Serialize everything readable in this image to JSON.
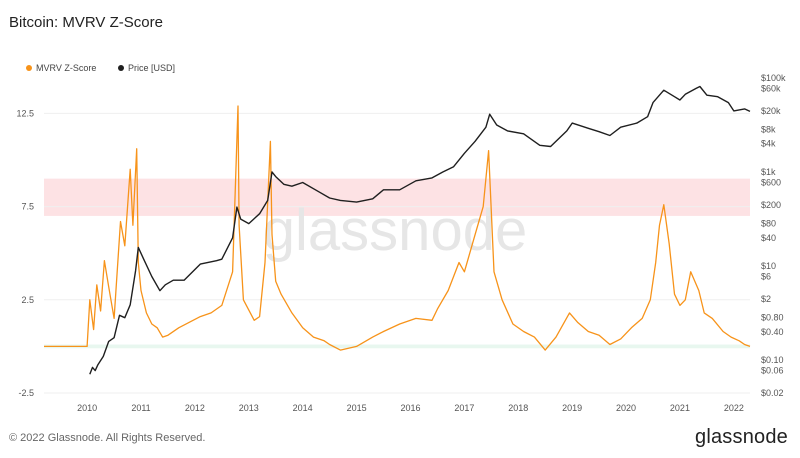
{
  "title": "Bitcoin: MVRV Z-Score",
  "footer": "© 2022 Glassnode. All Rights Reserved.",
  "brand": "glassnode",
  "watermark": "glassnode",
  "colors": {
    "zscore": "#f7931a",
    "price": "#1f1f1f",
    "red_band": "#fde2e4",
    "green_band": "#e8f7ef"
  },
  "chart_data": {
    "type": "line",
    "title": "Bitcoin: MVRV Z-Score",
    "legend": {
      "placement": "top-left",
      "entries": [
        "MVRV Z-Score",
        "Price [USD]"
      ]
    },
    "x_ticks": [
      "2010",
      "2011",
      "2012",
      "2013",
      "2014",
      "2015",
      "2016",
      "2017",
      "2018",
      "2019",
      "2020",
      "2021",
      "2022"
    ],
    "x_range": [
      2009.7,
      2022.8
    ],
    "y_left": {
      "ticks": [
        "12.5",
        "7.5",
        "2.5",
        "-2.5"
      ],
      "tick_values": [
        12.5,
        7.5,
        2.5,
        -2.5
      ],
      "range": [
        -2.5,
        14.4
      ]
    },
    "y_right": {
      "scale": "log",
      "ticks": [
        "$100k",
        "$60k",
        "$20k",
        "$8k",
        "$4k",
        "$1k",
        "$600",
        "$200",
        "$80",
        "$40",
        "$10",
        "$6",
        "$2",
        "$0.80",
        "$0.40",
        "$0.10",
        "$0.06",
        "$0.02"
      ],
      "tick_values": [
        100000,
        60000,
        20000,
        8000,
        4000,
        1000,
        600,
        200,
        80,
        40,
        10,
        6,
        2,
        0.8,
        0.4,
        0.1,
        0.06,
        0.02
      ],
      "range": [
        0.02,
        100000
      ]
    },
    "bands": [
      {
        "axis": "left",
        "from": 7.0,
        "to": 9.0,
        "color": "#fde2e4"
      },
      {
        "axis": "left",
        "from": -0.1,
        "to": 0.1,
        "color": "#e8f7ef"
      }
    ],
    "series": [
      {
        "name": "MVRV Z-Score",
        "axis": "left",
        "color": "#f7931a",
        "x": [
          2009.7,
          2010.5,
          2010.55,
          2010.62,
          2010.68,
          2010.75,
          2010.82,
          2010.9,
          2011.0,
          2011.12,
          2011.2,
          2011.3,
          2011.35,
          2011.42,
          2011.45,
          2011.5,
          2011.6,
          2011.7,
          2011.8,
          2011.9,
          2012.0,
          2012.2,
          2012.4,
          2012.6,
          2012.8,
          2013.0,
          2013.2,
          2013.3,
          2013.32,
          2013.4,
          2013.6,
          2013.7,
          2013.8,
          2013.9,
          2013.93,
          2014.0,
          2014.1,
          2014.3,
          2014.5,
          2014.7,
          2014.9,
          2015.0,
          2015.2,
          2015.5,
          2015.8,
          2016.0,
          2016.3,
          2016.6,
          2016.9,
          2017.0,
          2017.2,
          2017.4,
          2017.5,
          2017.7,
          2017.85,
          2017.95,
          2018.05,
          2018.2,
          2018.4,
          2018.6,
          2018.8,
          2019.0,
          2019.2,
          2019.45,
          2019.6,
          2019.8,
          2020.0,
          2020.2,
          2020.4,
          2020.6,
          2020.8,
          2020.95,
          2021.05,
          2021.12,
          2021.2,
          2021.3,
          2021.4,
          2021.5,
          2021.6,
          2021.7,
          2021.85,
          2021.95,
          2022.1,
          2022.3,
          2022.45,
          2022.6,
          2022.7,
          2022.8
        ],
        "values": [
          0.0,
          0.0,
          2.5,
          0.9,
          3.3,
          1.9,
          4.6,
          3.2,
          1.5,
          6.7,
          5.4,
          9.5,
          6.5,
          10.6,
          4.5,
          3.0,
          1.8,
          1.2,
          1.0,
          0.5,
          0.6,
          1.0,
          1.3,
          1.6,
          1.8,
          2.2,
          4.0,
          12.9,
          6.5,
          2.5,
          1.4,
          1.6,
          4.5,
          11.0,
          6.0,
          3.5,
          2.8,
          1.8,
          1.0,
          0.5,
          0.3,
          0.1,
          -0.2,
          0.0,
          0.5,
          0.8,
          1.2,
          1.5,
          1.4,
          2.0,
          3.0,
          4.5,
          4.0,
          6.0,
          7.5,
          10.5,
          4.0,
          2.5,
          1.2,
          0.8,
          0.5,
          -0.2,
          0.5,
          1.8,
          1.3,
          0.8,
          0.6,
          0.1,
          0.4,
          1.0,
          1.5,
          2.5,
          4.5,
          6.5,
          7.6,
          5.5,
          2.8,
          2.2,
          2.5,
          4.0,
          3.0,
          1.8,
          1.5,
          0.8,
          0.5,
          0.3,
          0.1,
          0.0
        ]
      },
      {
        "name": "Price [USD]",
        "axis": "right",
        "color": "#1f1f1f",
        "x": [
          2010.55,
          2010.6,
          2010.65,
          2010.7,
          2010.8,
          2010.9,
          2011.0,
          2011.1,
          2011.2,
          2011.3,
          2011.4,
          2011.45,
          2011.55,
          2011.7,
          2011.85,
          2011.95,
          2012.1,
          2012.3,
          2012.6,
          2012.9,
          2013.0,
          2013.2,
          2013.28,
          2013.35,
          2013.5,
          2013.7,
          2013.85,
          2013.93,
          2014.0,
          2014.15,
          2014.3,
          2014.5,
          2014.8,
          2015.0,
          2015.2,
          2015.5,
          2015.8,
          2016.0,
          2016.3,
          2016.6,
          2016.9,
          2017.1,
          2017.3,
          2017.5,
          2017.7,
          2017.9,
          2017.97,
          2018.1,
          2018.3,
          2018.6,
          2018.9,
          2019.1,
          2019.4,
          2019.5,
          2019.8,
          2020.0,
          2020.2,
          2020.4,
          2020.7,
          2020.9,
          2021.0,
          2021.2,
          2021.4,
          2021.5,
          2021.6,
          2021.8,
          2021.87,
          2022.0,
          2022.2,
          2022.4,
          2022.5,
          2022.7,
          2022.8
        ],
        "values": [
          0.05,
          0.07,
          0.06,
          0.08,
          0.12,
          0.25,
          0.3,
          0.9,
          0.8,
          1.5,
          8.0,
          25.0,
          14.0,
          6.0,
          3.0,
          4.0,
          5.0,
          5.0,
          11.0,
          13.0,
          14.0,
          40.0,
          180.0,
          100.0,
          80.0,
          130.0,
          250.0,
          1000.0,
          800.0,
          550.0,
          500.0,
          600.0,
          380.0,
          280.0,
          250.0,
          230.0,
          270.0,
          420.0,
          420.0,
          650.0,
          750.0,
          1000.0,
          1300.0,
          2500.0,
          4500.0,
          9000.0,
          17000.0,
          10000.0,
          7500.0,
          6500.0,
          3700.0,
          3500.0,
          7500.0,
          11000.0,
          8500.0,
          7200.0,
          6000.0,
          9000.0,
          11000.0,
          15000.0,
          30000.0,
          55000.0,
          40000.0,
          34000.0,
          45000.0,
          60000.0,
          66000.0,
          43000.0,
          40000.0,
          30000.0,
          20000.0,
          22000.0,
          19500.0
        ]
      }
    ]
  }
}
